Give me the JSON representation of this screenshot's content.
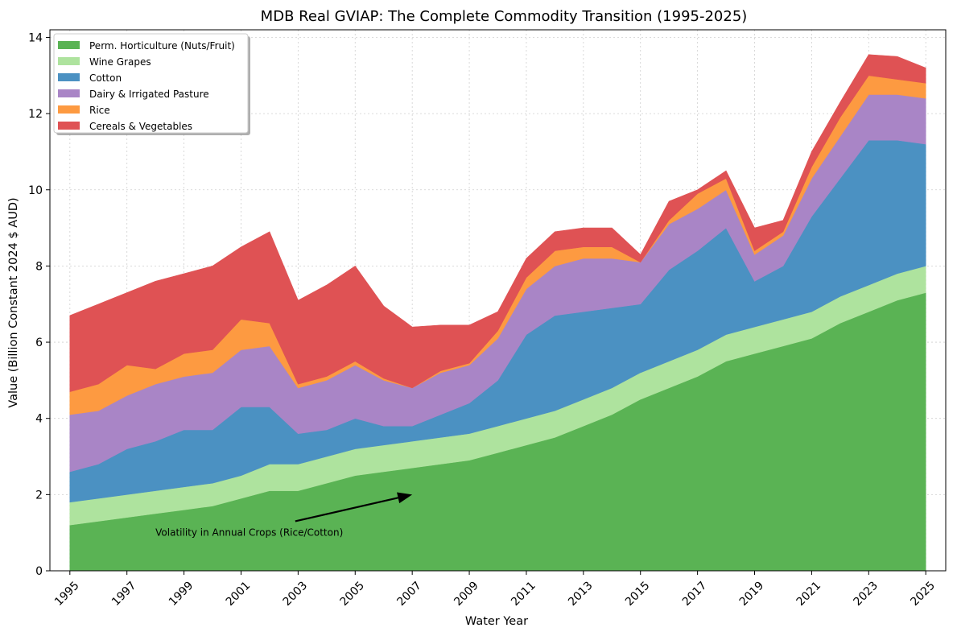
{
  "chart_data": {
    "type": "area",
    "stacked": true,
    "title": "MDB Real GVIAP: The Complete Commodity Transition (1995-2025)",
    "xlabel": "Water Year",
    "ylabel": "Value (Billion Constant 2024 $ AUD)",
    "xlim": [
      1994.3,
      2025.7
    ],
    "ylim": [
      0,
      14.2
    ],
    "x": [
      1995,
      1996,
      1997,
      1998,
      1999,
      2000,
      2001,
      2002,
      2003,
      2004,
      2005,
      2006,
      2007,
      2008,
      2009,
      2010,
      2011,
      2012,
      2013,
      2014,
      2015,
      2016,
      2017,
      2018,
      2019,
      2020,
      2021,
      2022,
      2023,
      2024,
      2025
    ],
    "xticks": [
      "1995",
      "1997",
      "1999",
      "2001",
      "2003",
      "2005",
      "2007",
      "2009",
      "2011",
      "2013",
      "2015",
      "2017",
      "2019",
      "2021",
      "2023",
      "2025"
    ],
    "yticks": [
      "0",
      "2",
      "4",
      "6",
      "8",
      "10",
      "12",
      "14"
    ],
    "grid": true,
    "legend_position": "top-left",
    "series": [
      {
        "name": "Perm. Horticulture (Nuts/Fruit)",
        "color": "#5ab354",
        "values": [
          1.2,
          1.3,
          1.4,
          1.5,
          1.6,
          1.7,
          1.9,
          2.1,
          2.1,
          2.3,
          2.5,
          2.6,
          2.7,
          2.8,
          2.9,
          3.1,
          3.3,
          3.5,
          3.8,
          4.1,
          4.5,
          4.8,
          5.1,
          5.5,
          5.7,
          5.9,
          6.1,
          6.5,
          6.8,
          7.1,
          7.3
        ]
      },
      {
        "name": "Wine Grapes",
        "color": "#aee39e",
        "values": [
          0.6,
          0.6,
          0.6,
          0.6,
          0.6,
          0.6,
          0.6,
          0.7,
          0.7,
          0.7,
          0.7,
          0.7,
          0.7,
          0.7,
          0.7,
          0.7,
          0.7,
          0.7,
          0.7,
          0.7,
          0.7,
          0.7,
          0.7,
          0.7,
          0.7,
          0.7,
          0.7,
          0.7,
          0.7,
          0.7,
          0.7
        ]
      },
      {
        "name": "Cotton",
        "color": "#4b91c2",
        "values": [
          0.8,
          0.9,
          1.2,
          1.3,
          1.5,
          1.4,
          1.8,
          1.5,
          0.8,
          0.7,
          0.8,
          0.5,
          0.4,
          0.6,
          0.8,
          1.2,
          2.2,
          2.5,
          2.3,
          2.1,
          1.8,
          2.4,
          2.6,
          2.8,
          1.2,
          1.4,
          2.5,
          3.1,
          3.8,
          3.5,
          3.2
        ]
      },
      {
        "name": "Dairy & Irrigated Pasture",
        "color": "#a985c6",
        "values": [
          1.5,
          1.4,
          1.4,
          1.5,
          1.4,
          1.5,
          1.5,
          1.6,
          1.2,
          1.3,
          1.4,
          1.2,
          1.0,
          1.1,
          1.0,
          1.1,
          1.2,
          1.3,
          1.4,
          1.3,
          1.1,
          1.2,
          1.1,
          1.0,
          0.7,
          0.8,
          1.0,
          1.1,
          1.2,
          1.2,
          1.2
        ]
      },
      {
        "name": "Rice",
        "color": "#fd9a41",
        "values": [
          0.6,
          0.7,
          0.8,
          0.4,
          0.6,
          0.6,
          0.8,
          0.6,
          0.1,
          0.1,
          0.1,
          0.05,
          0.0,
          0.05,
          0.05,
          0.2,
          0.3,
          0.4,
          0.3,
          0.3,
          0.0,
          0.1,
          0.4,
          0.3,
          0.1,
          0.1,
          0.3,
          0.5,
          0.5,
          0.4,
          0.4
        ]
      },
      {
        "name": "Cereals & Vegetables",
        "color": "#df5254",
        "values": [
          2.0,
          2.1,
          1.9,
          2.3,
          2.1,
          2.2,
          1.9,
          2.4,
          2.2,
          2.4,
          2.5,
          1.9,
          1.6,
          1.2,
          1.0,
          0.5,
          0.5,
          0.5,
          0.5,
          0.5,
          0.2,
          0.5,
          0.1,
          0.2,
          0.6,
          0.3,
          0.4,
          0.4,
          0.55,
          0.6,
          0.4
        ]
      }
    ],
    "annotation": {
      "text": "Volatility in Annual Crops (Rice/Cotton)",
      "text_x": 1998,
      "text_y": 1.0,
      "arrow_x": 2007,
      "arrow_y": 2.0
    }
  }
}
